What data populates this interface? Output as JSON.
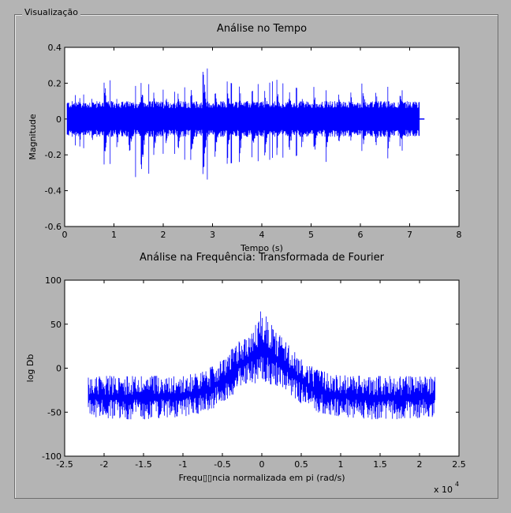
{
  "panel": {
    "title": "Visualização"
  },
  "chart_data": [
    {
      "type": "line",
      "title": "Análise no Tempo",
      "xlabel": "Tempo (s)",
      "ylabel": "Magnitude",
      "xlim": [
        0,
        8
      ],
      "ylim": [
        -0.6,
        0.4
      ],
      "x_ticks": [
        "0",
        "1",
        "2",
        "3",
        "4",
        "5",
        "6",
        "7",
        "8"
      ],
      "y_ticks": [
        "0.4",
        "0.2",
        "0",
        "-0.2",
        "-0.4",
        "-0.6"
      ],
      "x_tick_values": [
        0,
        1,
        2,
        3,
        4,
        5,
        6,
        7,
        8
      ],
      "y_tick_values": [
        0.4,
        0.2,
        0,
        -0.2,
        -0.4,
        -0.6
      ],
      "grid": false,
      "color": "#0000ff",
      "series": [
        {
          "x": [
            0.05,
            0.3,
            0.55,
            0.8,
            1.05,
            1.3,
            1.55,
            1.8,
            2.05,
            2.3,
            2.55,
            2.8,
            3.05,
            3.3,
            3.55,
            3.8,
            4.05,
            4.3,
            4.55,
            4.8,
            5.05,
            5.3,
            5.55,
            5.8,
            6.05,
            6.3,
            6.55,
            6.8,
            7.05,
            7.2
          ],
          "upper": [
            0.12,
            0.14,
            0.13,
            0.28,
            0.15,
            0.14,
            0.22,
            0.18,
            0.16,
            0.15,
            0.2,
            0.35,
            0.17,
            0.21,
            0.18,
            0.2,
            0.19,
            0.22,
            0.18,
            0.17,
            0.2,
            0.16,
            0.18,
            0.17,
            0.2,
            0.21,
            0.18,
            0.17,
            0.12,
            0.0
          ],
          "lower": [
            -0.1,
            -0.17,
            -0.15,
            -0.3,
            -0.2,
            -0.23,
            -0.4,
            -0.25,
            -0.18,
            -0.2,
            -0.25,
            -0.41,
            -0.22,
            -0.25,
            -0.24,
            -0.22,
            -0.25,
            -0.2,
            -0.23,
            -0.19,
            -0.25,
            -0.24,
            -0.18,
            -0.16,
            -0.18,
            -0.2,
            -0.22,
            -0.2,
            -0.08,
            0.0
          ]
        }
      ]
    },
    {
      "type": "line",
      "title": "Análise na Frequência: Transformada de Fourier",
      "xlabel": "Frequ▯▯ncia normalizada em pi (rad/s)",
      "ylabel": "log Db",
      "x_exponent": "x 10",
      "x_exponent_power": "4",
      "xlim": [
        -2.5,
        2.5
      ],
      "ylim": [
        -100,
        100
      ],
      "x_ticks": [
        "-2.5",
        "-2",
        "-1.5",
        "-1",
        "-0.5",
        "0",
        "0.5",
        "1",
        "1.5",
        "2",
        "2.5"
      ],
      "y_ticks": [
        "100",
        "50",
        "0",
        "-50",
        "-100"
      ],
      "x_tick_values": [
        -2.5,
        -2,
        -1.5,
        -1,
        -0.5,
        0,
        0.5,
        1,
        1.5,
        2,
        2.5
      ],
      "y_tick_values": [
        100,
        50,
        0,
        -50,
        -100
      ],
      "grid": false,
      "color": "#0000ff",
      "series": [
        {
          "x": [
            -2.2,
            -1.8,
            -1.4,
            -1.0,
            -0.7,
            -0.5,
            -0.3,
            -0.15,
            0.0,
            0.15,
            0.3,
            0.5,
            0.7,
            1.0,
            1.4,
            1.8,
            2.2
          ],
          "upper": [
            -10,
            -8,
            -9,
            -8,
            -2,
            10,
            30,
            35,
            68,
            45,
            30,
            10,
            -2,
            -8,
            -9,
            -9,
            -10
          ],
          "lower": [
            -55,
            -58,
            -58,
            -55,
            -50,
            -40,
            -25,
            -15,
            -20,
            -18,
            -25,
            -40,
            -50,
            -55,
            -58,
            -58,
            -55
          ]
        }
      ]
    }
  ]
}
